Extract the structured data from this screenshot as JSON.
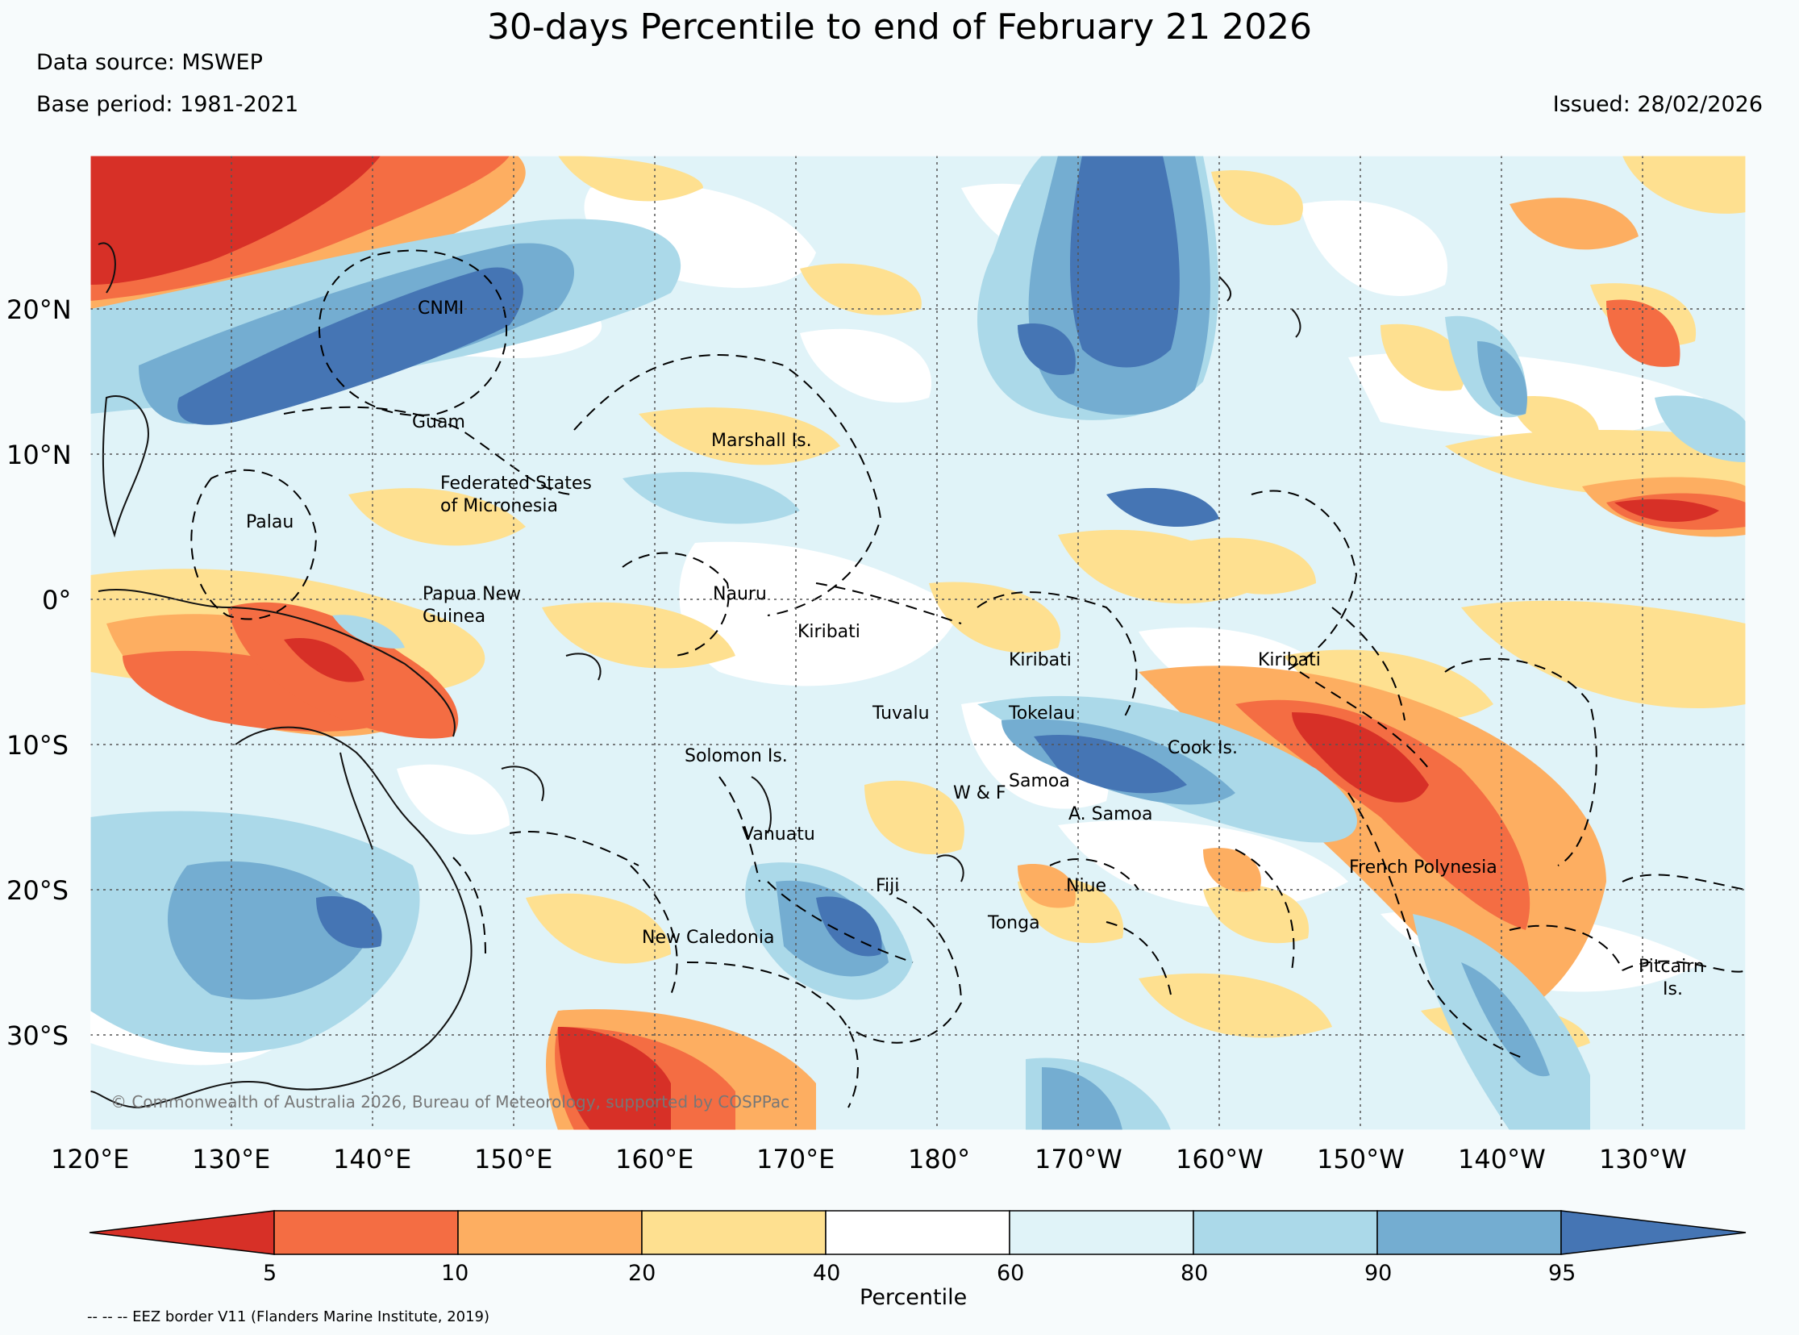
{
  "title": "30-days Percentile to end of February 21 2026",
  "data_source": "Data source: MSWEP",
  "base_period": "Base period: 1981-2021",
  "issued": "Issued: 28/02/2026",
  "lat_labels": [
    "20°N",
    "10°N",
    "0°",
    "10°S",
    "20°S",
    "30°S"
  ],
  "lon_labels": [
    "120°E",
    "130°E",
    "140°E",
    "150°E",
    "160°E",
    "170°E",
    "180°",
    "170°W",
    "160°W",
    "150°W",
    "140°W",
    "130°W"
  ],
  "region_labels": [
    "CNMI",
    "Guam",
    "Marshall Is.",
    "Federated States",
    "of Micronesia",
    "Palau",
    "Papua New",
    "Guinea",
    "Nauru",
    "Kiribati",
    "Kiribati",
    "Kiribati",
    "Tuvalu",
    "Tokelau",
    "Cook Is.",
    "Solomon Is.",
    "Samoa",
    "W & F",
    "A. Samoa",
    "Vanuatu",
    "Fiji",
    "Niue",
    "French Polynesia",
    "Tonga",
    "New Caledonia",
    "Pitcairn",
    "Is."
  ],
  "copyright": "© Commonwealth of Australia 2026, Bureau of Meteorology, supported by COSPPac",
  "colorbar": {
    "label": "Percentile",
    "ticks": [
      "5",
      "10",
      "20",
      "40",
      "60",
      "80",
      "90",
      "95"
    ],
    "colors": [
      "#d73027",
      "#f46d43",
      "#fdae61",
      "#fee090",
      "#ffffff",
      "#e0f3f8",
      "#abd9e9",
      "#74add1",
      "#4575b4"
    ]
  },
  "footnote": "-- -- -- EEZ border V11 (Flanders Marine Institute, 2019)",
  "colors": {
    "very_dry": "#d73027",
    "dry": "#f46d43",
    "below": "#fdae61",
    "slightly_below": "#fee090",
    "normal": "#ffffff",
    "slightly_above": "#e0f3f8",
    "above": "#abd9e9",
    "wet": "#74add1",
    "very_wet": "#4575b4",
    "background": "#f7fbfc"
  }
}
